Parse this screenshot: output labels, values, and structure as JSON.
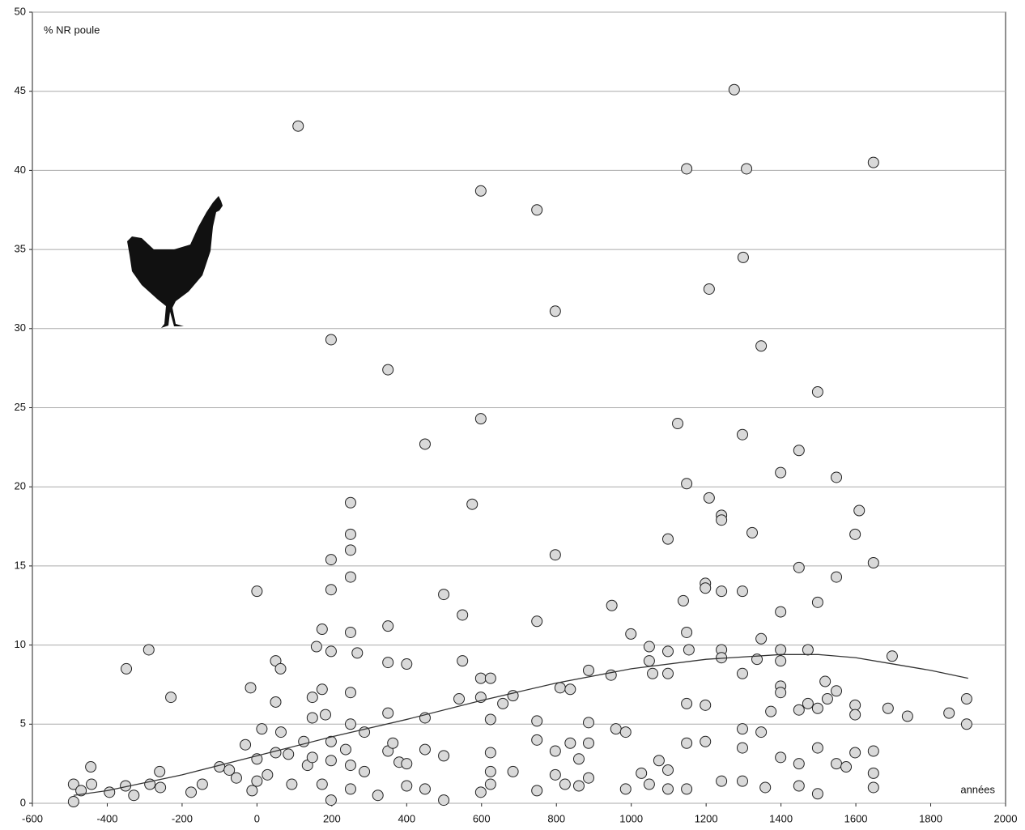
{
  "chart_data": {
    "type": "scatter",
    "y_label": "% NR poule",
    "x_label": "années",
    "xlim": [
      -600,
      2000
    ],
    "xticks": [
      -600,
      -400,
      -200,
      0,
      200,
      400,
      600,
      800,
      1000,
      1200,
      1400,
      1600,
      1800,
      2000
    ],
    "ylim": [
      0,
      50
    ],
    "yticks": [
      0,
      5,
      10,
      15,
      20,
      25,
      30,
      35,
      40,
      45,
      50
    ],
    "grid": true,
    "series": [
      {
        "type": "scatter",
        "color": "#d9d9d9",
        "x": [
          1275,
          110,
          1148,
          1308,
          1647,
          598,
          748,
          1299,
          1208,
          797,
          198,
          1347,
          350,
          1498,
          598,
          1124,
          1297,
          449,
          1448,
          1399,
          1548,
          1148,
          1208,
          250,
          575,
          1609,
          1241,
          1241,
          1323,
          1598,
          250,
          1098,
          250,
          797,
          198,
          1647,
          1448,
          250,
          1548,
          1198,
          1198,
          0,
          198,
          1241,
          1297,
          499,
          1139,
          1498,
          948,
          1399,
          549,
          748,
          350,
          174,
          250,
          1148,
          999,
          1347,
          -349,
          -289,
          -230,
          -17,
          50,
          63,
          159,
          198,
          268,
          350,
          400,
          250,
          174,
          148,
          50,
          598,
          624,
          549,
          684,
          810,
          837,
          886,
          946,
          1048,
          1048,
          1057,
          1098,
          1098,
          1154,
          1241,
          1241,
          1297,
          1336,
          1399,
          1399,
          1472,
          1518,
          1697,
          1399,
          1399,
          1548,
          1148,
          1198,
          1472,
          1524,
          1598,
          1896,
          1849,
          1686,
          1738,
          1896,
          1498,
          1448,
          1373,
          1297,
          1598,
          598,
          657,
          540,
          287,
          449,
          350,
          -490,
          -490,
          -470,
          -444,
          -442,
          -394,
          -351,
          -329,
          -286,
          -260,
          -258,
          -176,
          -146,
          -100,
          -74,
          -55,
          -31,
          -13,
          0,
          0,
          13,
          28,
          50,
          64,
          84,
          93,
          125,
          135,
          148,
          148,
          174,
          183,
          198,
          198,
          198,
          237,
          250,
          250,
          250,
          287,
          323,
          350,
          363,
          380,
          400,
          400,
          449,
          449,
          499,
          499,
          598,
          624,
          624,
          624,
          624,
          684,
          748,
          748,
          748,
          797,
          797,
          823,
          837,
          860,
          860,
          886,
          886,
          886,
          959,
          985,
          985,
          1027,
          1048,
          1074,
          1098,
          1098,
          1148,
          1148,
          1198,
          1241,
          1297,
          1297,
          1347,
          1358,
          1399,
          1448,
          1448,
          1498,
          1498,
          1548,
          1574,
          1598,
          1647,
          1647,
          1647
        ],
        "values": [
          45.1,
          42.8,
          40.1,
          40.1,
          40.5,
          38.7,
          37.5,
          34.5,
          32.5,
          31.1,
          29.3,
          28.9,
          27.4,
          26.0,
          24.3,
          24.0,
          23.3,
          22.7,
          22.3,
          20.9,
          20.6,
          20.2,
          19.3,
          19.0,
          18.9,
          18.5,
          18.2,
          17.9,
          17.1,
          17.0,
          17.0,
          16.7,
          16.0,
          15.7,
          15.4,
          15.2,
          14.9,
          14.3,
          14.3,
          13.9,
          13.6,
          13.4,
          13.5,
          13.4,
          13.4,
          13.2,
          12.8,
          12.7,
          12.5,
          12.1,
          11.9,
          11.5,
          11.2,
          11.0,
          10.8,
          10.8,
          10.7,
          10.4,
          8.5,
          9.7,
          6.7,
          7.3,
          9.0,
          8.5,
          9.9,
          9.6,
          9.5,
          8.9,
          8.8,
          7.0,
          7.2,
          6.7,
          6.4,
          7.9,
          7.9,
          9.0,
          6.8,
          7.3,
          7.2,
          8.4,
          8.1,
          9.9,
          9.0,
          8.2,
          9.6,
          8.2,
          9.7,
          9.7,
          9.2,
          8.2,
          9.1,
          9.7,
          9.0,
          9.7,
          7.7,
          9.3,
          7.4,
          7.0,
          7.1,
          6.3,
          6.2,
          6.3,
          6.6,
          6.2,
          6.6,
          5.7,
          6.0,
          5.5,
          5.0,
          6.0,
          5.9,
          5.8,
          4.7,
          5.6,
          6.7,
          6.3,
          6.6,
          4.5,
          5.4,
          5.7,
          1.2,
          0.1,
          0.8,
          2.3,
          1.2,
          0.7,
          1.1,
          0.5,
          1.2,
          2.0,
          1.0,
          0.7,
          1.2,
          2.3,
          2.1,
          1.6,
          3.7,
          0.8,
          1.4,
          2.8,
          4.7,
          1.8,
          3.2,
          4.5,
          3.1,
          1.2,
          3.9,
          2.4,
          2.9,
          5.4,
          1.2,
          5.6,
          3.9,
          2.7,
          0.2,
          3.4,
          5.0,
          2.4,
          0.9,
          2.0,
          0.5,
          3.3,
          3.8,
          2.6,
          2.5,
          1.1,
          3.4,
          0.9,
          3.0,
          0.2,
          0.7,
          5.3,
          3.2,
          2.0,
          1.2,
          2.0,
          5.2,
          4.0,
          0.8,
          3.3,
          1.8,
          1.2,
          3.8,
          2.8,
          1.1,
          5.1,
          3.8,
          1.6,
          4.7,
          4.5,
          0.9,
          1.9,
          1.2,
          2.7,
          2.1,
          0.9,
          3.8,
          0.9,
          3.9,
          1.4,
          3.5,
          1.4,
          4.5,
          1.0,
          2.9,
          2.5,
          1.1,
          3.5,
          0.6,
          2.5,
          2.3,
          3.2,
          3.3,
          1.0,
          1.9
        ]
      },
      {
        "type": "line",
        "color": "#333333",
        "x": [
          -490,
          -400,
          -200,
          0,
          200,
          400,
          600,
          800,
          1000,
          1200,
          1400,
          1500,
          1600,
          1700,
          1800,
          1900
        ],
        "values": [
          0.5,
          0.8,
          1.8,
          3.0,
          4.2,
          5.3,
          6.5,
          7.6,
          8.5,
          9.1,
          9.4,
          9.4,
          9.2,
          8.8,
          8.4,
          7.9
        ]
      }
    ]
  }
}
